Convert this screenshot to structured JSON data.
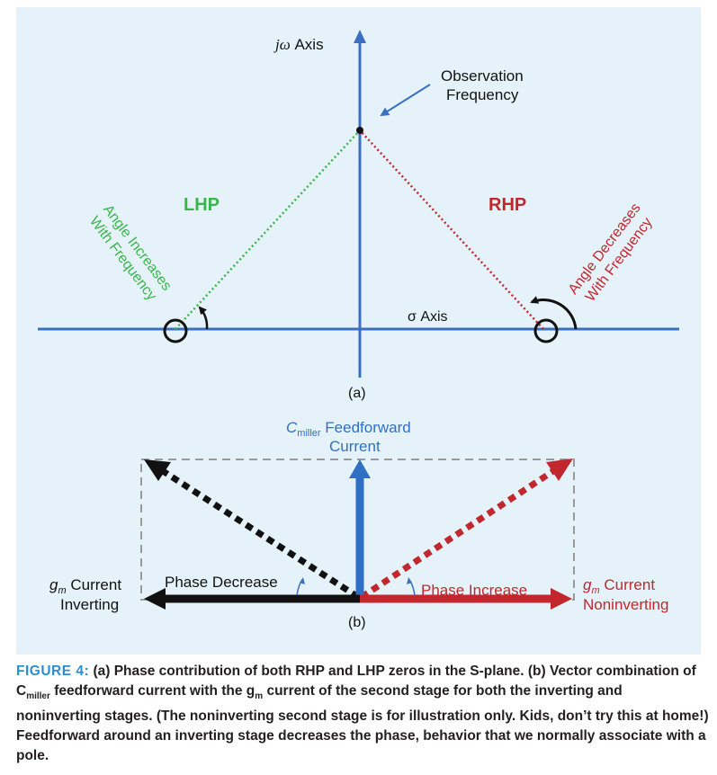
{
  "colors": {
    "panel_bg": "#e6f2fa",
    "axis_blue": "#3a6fc1",
    "lhp_green": "#39b54a",
    "rhp_red": "#c1272d",
    "black": "#111111",
    "caption_blue": "#2a8fd0",
    "miller_blue": "#2f6fc4"
  },
  "diagram_a": {
    "jw_axis_label_j": "jω",
    "jw_axis_label_rest": " Axis",
    "observation_line1": "Observation",
    "observation_line2": "Frequency",
    "lhp_label": "LHP",
    "rhp_label": "RHP",
    "lhp_angle_line1": "Angle Increases",
    "lhp_angle_line2": "With Frequency",
    "rhp_angle_line1": "Angle Decreases",
    "rhp_angle_line2": "With Frequency",
    "sigma_axis_label": "σ Axis",
    "sublabel": "(a)"
  },
  "diagram_b": {
    "miller_c": "C",
    "miller_sub": "miller",
    "miller_rest": " Feedforward",
    "miller_line2": "Current",
    "left_gm": "g",
    "left_gm_sub": "m",
    "left_line1_rest": " Current",
    "left_line2": "Inverting",
    "right_gm": "g",
    "right_gm_sub": "m",
    "right_line1_rest": " Current",
    "right_line2": "Noninverting",
    "phase_decrease": "Phase Decrease",
    "phase_increase": "Phase Increase",
    "sublabel": "(b)"
  },
  "caption": {
    "figure_label": "FIGURE 4:",
    "text_part1": " (a) Phase contribution of both RHP and LHP zeros in the S-plane. (b) Vector combination of C",
    "sub1": "miller",
    "text_part2": " feedforward current with the g",
    "sub2": "m",
    "text_part3": " current of the second stage for both the inverting and noninverting stages. (The noninverting second stage is for illustration only. Kids, don’t try this at home!) Feedforward around an inverting stage decreases the phase, behavior that we normally associate with a pole."
  }
}
